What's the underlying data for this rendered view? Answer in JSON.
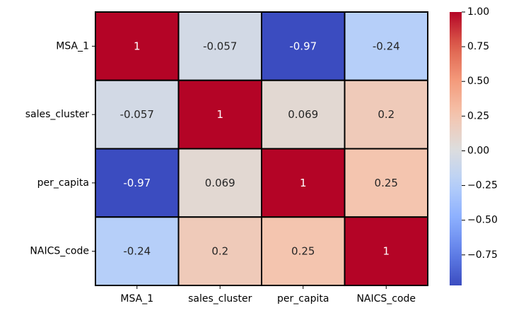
{
  "chart_data": {
    "type": "heatmap",
    "title": "",
    "xlabel": "",
    "ylabel": "",
    "rows": [
      "MSA_1",
      "sales_cluster",
      "per_capita",
      "NAICS_code"
    ],
    "columns": [
      "MSA_1",
      "sales_cluster",
      "per_capita",
      "NAICS_code"
    ],
    "values": [
      [
        1,
        -0.057,
        -0.97,
        -0.24
      ],
      [
        -0.057,
        1,
        0.069,
        0.2
      ],
      [
        -0.97,
        0.069,
        1,
        0.25
      ],
      [
        -0.24,
        0.2,
        0.25,
        1
      ]
    ],
    "labels": [
      [
        "1",
        "-0.057",
        "-0.97",
        "-0.24"
      ],
      [
        "-0.057",
        "1",
        "0.069",
        "0.2"
      ],
      [
        "-0.97",
        "0.069",
        "1",
        "0.25"
      ],
      [
        "-0.24",
        "0.2",
        "0.25",
        "1"
      ]
    ],
    "colormap": "coolwarm",
    "vmin": -0.97,
    "vmax": 1.0,
    "cell_border_color": "#000000",
    "colorbar": {
      "ticks": [
        1.0,
        0.75,
        0.5,
        0.25,
        0.0,
        -0.25,
        -0.5,
        -0.75
      ],
      "tick_labels": [
        "1.00",
        "0.75",
        "0.50",
        "0.25",
        "0.00",
        "−0.25",
        "−0.50",
        "−0.75"
      ],
      "position": "right"
    },
    "grid": false
  }
}
